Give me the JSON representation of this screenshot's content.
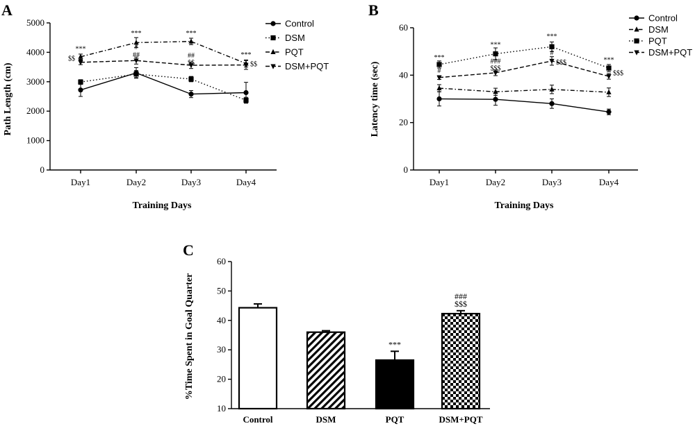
{
  "chart_data": [
    {
      "panel": "A",
      "type": "line",
      "xlabel": "Training Days",
      "ylabel": "Path Length (cm)",
      "categories": [
        "Day1",
        "Day2",
        "Day3",
        "Day4"
      ],
      "ylim": [
        0,
        5000
      ],
      "yticks": [
        "0",
        "1000",
        "2000",
        "3000",
        "4000",
        "5000"
      ],
      "legend_position": "top-right",
      "series": [
        {
          "name": "Control",
          "marker": "circle",
          "dash": "solid",
          "values": [
            2720,
            3300,
            2580,
            2630
          ],
          "errors": [
            220,
            180,
            120,
            350
          ]
        },
        {
          "name": "DSM",
          "marker": "square",
          "dash": "dotted",
          "values": [
            2990,
            3260,
            3090,
            2370
          ],
          "errors": [
            80,
            120,
            90,
            100
          ]
        },
        {
          "name": "PQT",
          "marker": "triangle-up",
          "dash": "dashdot",
          "values": [
            3850,
            4330,
            4370,
            3620
          ],
          "errors": [
            90,
            170,
            110,
            120
          ]
        },
        {
          "name": "DSM+PQT",
          "marker": "triangle-down",
          "dash": "dashed",
          "values": [
            3660,
            3720,
            3560,
            3570
          ],
          "errors": [
            80,
            120,
            110,
            150
          ]
        }
      ],
      "annotations": [
        {
          "text": "***",
          "x": "Day1",
          "y": 4050
        },
        {
          "text": "$$",
          "x": "Day1",
          "y": 3720,
          "side": "left"
        },
        {
          "text": "***",
          "x": "Day2",
          "y": 4580
        },
        {
          "text": "#",
          "x": "Day2",
          "y": 4100
        },
        {
          "text": "##",
          "x": "Day2",
          "y": 3840
        },
        {
          "text": "***",
          "x": "Day3",
          "y": 4580
        },
        {
          "text": "##",
          "x": "Day3",
          "y": 3820
        },
        {
          "text": "$$",
          "x": "Day3",
          "y": 3570
        },
        {
          "text": "***",
          "x": "Day4",
          "y": 3840
        },
        {
          "text": "$$",
          "x": "Day4",
          "y": 3530,
          "side": "right"
        }
      ]
    },
    {
      "panel": "B",
      "type": "line",
      "xlabel": "Training Days",
      "ylabel": "Latency time (sec)",
      "categories": [
        "Day1",
        "Day2",
        "Day3",
        "Day4"
      ],
      "ylim": [
        0,
        60
      ],
      "yticks": [
        "0",
        "20",
        "40",
        "60"
      ],
      "legend_position": "top-right",
      "series": [
        {
          "name": "Control",
          "marker": "circle",
          "dash": "solid",
          "values": [
            30,
            29.8,
            28,
            24.5
          ],
          "errors": [
            3,
            2.5,
            2,
            1.2
          ]
        },
        {
          "name": "DSM",
          "marker": "triangle-up",
          "dash": "dashdot",
          "values": [
            34.5,
            33,
            34,
            32.8
          ],
          "errors": [
            1.5,
            1.5,
            1.8,
            1.8
          ]
        },
        {
          "name": "PQT",
          "marker": "square",
          "dash": "dotted",
          "values": [
            44.5,
            49,
            52,
            43
          ],
          "errors": [
            1.5,
            2.5,
            2,
            1.5
          ]
        },
        {
          "name": "DSM+PQT",
          "marker": "triangle-down",
          "dash": "dashed",
          "values": [
            39,
            41,
            46,
            39.5
          ],
          "errors": [
            0.8,
            1.2,
            1.8,
            1.2
          ]
        }
      ],
      "annotations": [
        {
          "text": "***",
          "x": "Day1",
          "y": 46.5
        },
        {
          "text": "#",
          "x": "Day1",
          "y": 41
        },
        {
          "text": "***",
          "x": "Day2",
          "y": 52
        },
        {
          "text": "###",
          "x": "Day2",
          "y": 45
        },
        {
          "text": "$$$",
          "x": "Day2",
          "y": 42
        },
        {
          "text": "***",
          "x": "Day3",
          "y": 55.5
        },
        {
          "text": "#",
          "x": "Day3",
          "y": 48.5
        },
        {
          "text": "$$$",
          "x": "Day3",
          "y": 44.5,
          "side": "right"
        },
        {
          "text": "***",
          "x": "Day4",
          "y": 45.5
        },
        {
          "text": "$$$",
          "x": "Day4",
          "y": 40,
          "side": "right"
        }
      ]
    },
    {
      "panel": "C",
      "type": "bar",
      "xlabel": "",
      "ylabel": "%Time Spent in Goal Quarter",
      "categories": [
        "Control",
        "DSM",
        "PQT",
        "DSM+PQT"
      ],
      "ylim": [
        10,
        60
      ],
      "yticks": [
        "10",
        "20",
        "30",
        "40",
        "50",
        "60"
      ],
      "values": [
        44.3,
        36,
        26.5,
        42.3
      ],
      "errors": [
        1.3,
        0.5,
        3,
        1
      ],
      "fills": [
        "white",
        "diagonal-stripes",
        "black",
        "checkerboard"
      ],
      "annotations": [
        {
          "bar": 2,
          "lines": [
            "***"
          ]
        },
        {
          "bar": 3,
          "lines": [
            "###",
            "$$$"
          ]
        }
      ]
    }
  ]
}
